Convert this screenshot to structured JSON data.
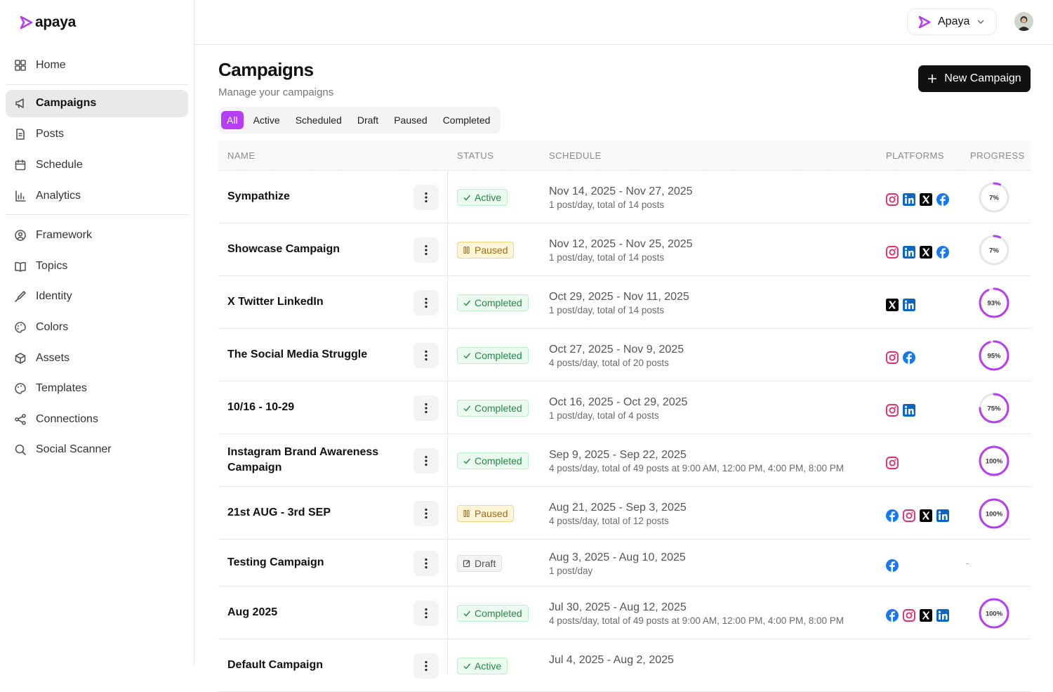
{
  "brand": "apaya",
  "workspace": "Apaya",
  "nav": [
    [
      "Home"
    ],
    [
      "Campaigns",
      "Posts",
      "Schedule",
      "Analytics"
    ],
    [
      "Framework",
      "Topics",
      "Identity",
      "Colors",
      "Assets",
      "Templates",
      "Connections",
      "Social Scanner"
    ]
  ],
  "header": {
    "title": "Campaigns",
    "subtitle": "Manage your campaigns",
    "button": "New Campaign"
  },
  "tabs": [
    "All",
    "Active",
    "Scheduled",
    "Draft",
    "Paused",
    "Completed"
  ],
  "table": {
    "columns": [
      "NAME",
      "STATUS",
      "SCHEDULE",
      "PLATFORMS",
      "PROGRESS"
    ],
    "rows": [
      {
        "name": "Sympathize",
        "status": "Active",
        "dates": "Nov 14, 2025 - Nov 27, 2025",
        "details": "1 post/day, total of 14 posts",
        "platforms": [
          "instagram",
          "linkedin",
          "x",
          "facebook"
        ],
        "progress": {
          "value": 7,
          "label": "7%"
        }
      },
      {
        "name": "Showcase Campaign",
        "status": "Paused",
        "dates": "Nov 12, 2025 - Nov 25, 2025",
        "details": "1 post/day, total of 14 posts",
        "platforms": [
          "instagram",
          "linkedin",
          "x",
          "facebook"
        ],
        "progress": {
          "value": 7,
          "label": "7%"
        }
      },
      {
        "name": "X Twitter LinkedIn",
        "status": "Completed",
        "dates": "Oct 29, 2025 - Nov 11, 2025",
        "details": "1 post/day, total of 14 posts",
        "platforms": [
          "x",
          "linkedin"
        ],
        "progress": {
          "value": 93,
          "label": "93%"
        }
      },
      {
        "name": "The Social Media Struggle",
        "status": "Completed",
        "dates": "Oct 27, 2025 - Nov 9, 2025",
        "details": "4 posts/day, total of 20 posts",
        "platforms": [
          "instagram",
          "facebook"
        ],
        "progress": {
          "value": 95,
          "label": "95%"
        }
      },
      {
        "name": "10/16 - 10-29",
        "status": "Completed",
        "dates": "Oct 16, 2025 - Oct 29, 2025",
        "details": "1 post/day, total of 4 posts",
        "platforms": [
          "instagram",
          "linkedin"
        ],
        "progress": {
          "value": 75,
          "label": "75%"
        }
      },
      {
        "name": "Instagram Brand Awareness Campaign",
        "status": "Completed",
        "dates": "Sep 9, 2025 - Sep 22, 2025",
        "details": "4 posts/day, total of 49 posts at 9:00 AM, 12:00 PM, 4:00 PM, 8:00 PM",
        "platforms": [
          "instagram"
        ],
        "progress": {
          "value": 100,
          "label": "100%"
        }
      },
      {
        "name": "21st AUG - 3rd SEP",
        "status": "Paused",
        "dates": "Aug 21, 2025 - Sep 3, 2025",
        "details": "4 posts/day, total of 12 posts",
        "platforms": [
          "facebook",
          "instagram",
          "x",
          "linkedin"
        ],
        "progress": {
          "value": 100,
          "label": "100%"
        }
      },
      {
        "name": "Testing Campaign",
        "status": "Draft",
        "dates": "Aug 3, 2025 - Aug 10, 2025",
        "details": "1 post/day",
        "platforms": [
          "facebook"
        ],
        "progress": {
          "label": "-"
        }
      },
      {
        "name": "Aug 2025",
        "status": "Completed",
        "dates": "Jul 30, 2025 - Aug 12, 2025",
        "details": "4 posts/day, total of 49 posts at 9:00 AM, 12:00 PM, 4:00 PM, 8:00 PM",
        "platforms": [
          "facebook",
          "instagram",
          "x",
          "linkedin"
        ],
        "progress": {
          "value": 100,
          "label": "100%"
        }
      },
      {
        "name": "Default Campaign",
        "status": "Active",
        "dates": "Jul 4, 2025 - Aug 2, 2025"
      }
    ]
  }
}
